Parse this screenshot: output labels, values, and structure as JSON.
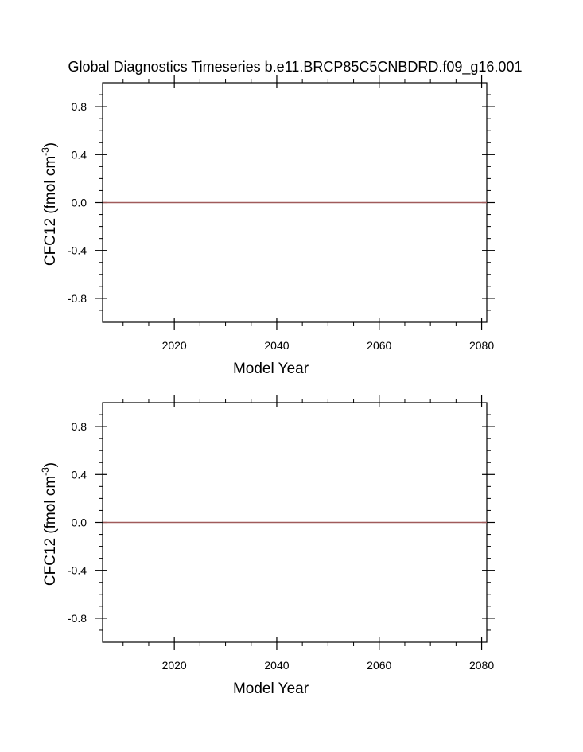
{
  "title": "Global Diagnostics Timeseries b.e11.BRCP85C5CNBDRD.f09_g16.001",
  "colors": {
    "frame": "#000000",
    "series": "#a05a5a",
    "background": "#ffffff"
  },
  "chart_data": [
    {
      "type": "line",
      "title": "",
      "xlabel": "Model Year",
      "ylabel": "CFC12 (fmol cm",
      "ylabel_exponent": "-3",
      "ylabel_suffix": ")",
      "xlim": [
        2006,
        2081
      ],
      "ylim": [
        -1.0,
        1.0
      ],
      "x_major_ticks": [
        2020,
        2040,
        2060,
        2080
      ],
      "x_tick_labels": [
        "2020",
        "2040",
        "2060",
        "2080"
      ],
      "y_major_ticks": [
        -0.8,
        -0.4,
        0.0,
        0.4,
        0.8
      ],
      "y_tick_labels": [
        "-0.8",
        "-0.4",
        "0.0",
        "0.4",
        "0.8"
      ],
      "grid": false,
      "series": [
        {
          "x": [
            2006,
            2081
          ],
          "y": [
            0.0,
            0.0
          ],
          "color": "#a05a5a"
        }
      ]
    },
    {
      "type": "line",
      "title": "",
      "xlabel": "Model Year",
      "ylabel": "CFC12 (fmol cm",
      "ylabel_exponent": "-3",
      "ylabel_suffix": ")",
      "xlim": [
        2006,
        2081
      ],
      "ylim": [
        -1.0,
        1.0
      ],
      "x_major_ticks": [
        2020,
        2040,
        2060,
        2080
      ],
      "x_tick_labels": [
        "2020",
        "2040",
        "2060",
        "2080"
      ],
      "y_major_ticks": [
        -0.8,
        -0.4,
        0.0,
        0.4,
        0.8
      ],
      "y_tick_labels": [
        "-0.8",
        "-0.4",
        "0.0",
        "0.4",
        "0.8"
      ],
      "grid": false,
      "series": [
        {
          "x": [
            2006,
            2081
          ],
          "y": [
            0.0,
            0.0
          ],
          "color": "#a05a5a"
        }
      ]
    }
  ]
}
